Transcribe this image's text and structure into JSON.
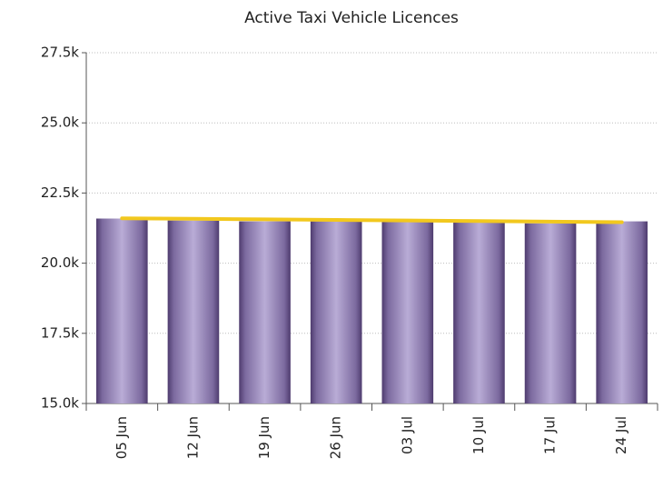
{
  "chart_data": {
    "type": "bar",
    "title": "Active Taxi Vehicle Licences",
    "categories": [
      "05 Jun",
      "12 Jun",
      "19 Jun",
      "26 Jun",
      "03 Jul",
      "10 Jul",
      "17 Jul",
      "24 Jul"
    ],
    "series": [
      {
        "color": "#b9acd6",
        "values": [
          21590,
          21520,
          21490,
          21490,
          21490,
          21460,
          21420,
          21490
        ]
      },
      {
        "type": "line",
        "color": "#f2c81e",
        "values": [
          21600,
          21580,
          21560,
          21540,
          21520,
          21500,
          21480,
          21460
        ]
      }
    ],
    "ylim": [
      15000,
      27500
    ],
    "yticks": [
      {
        "value": 15000,
        "label": "15.0k"
      },
      {
        "value": 17500,
        "label": "17.5k"
      },
      {
        "value": 20000,
        "label": "20.0k"
      },
      {
        "value": 22500,
        "label": "22.5k"
      },
      {
        "value": 25000,
        "label": "25.0k"
      },
      {
        "value": 27500,
        "label": "27.5k"
      }
    ],
    "grid": true
  }
}
